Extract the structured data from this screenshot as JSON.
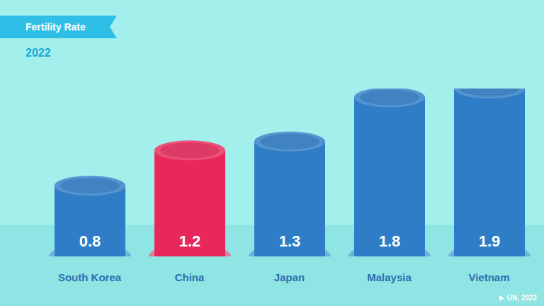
{
  "chart_data": {
    "type": "bar",
    "title": "Fertility Rate",
    "subtitle": "2022",
    "categories": [
      "South Korea",
      "China",
      "Japan",
      "Malaysia",
      "Vietnam"
    ],
    "values": [
      0.8,
      1.2,
      1.3,
      1.8,
      1.9
    ],
    "colors": [
      "#2e7dc6",
      "#e8285a",
      "#2e7dc6",
      "#2e7dc6",
      "#2e7dc6"
    ],
    "data_labels": true,
    "tick_labels": "x",
    "source": "UN, 2022"
  }
}
